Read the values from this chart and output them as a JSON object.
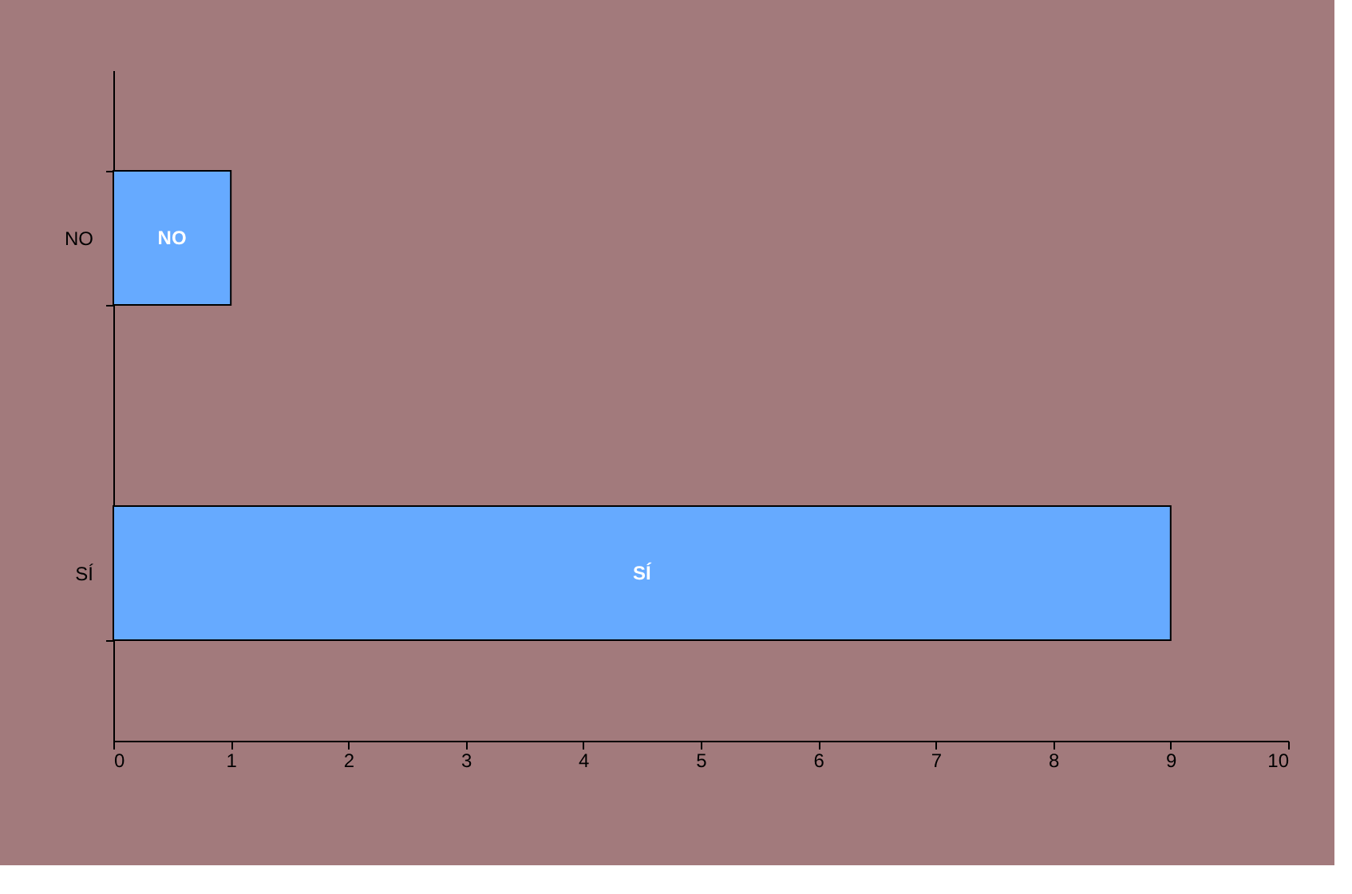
{
  "chart_data": {
    "type": "bar",
    "orientation": "horizontal",
    "categories": [
      "NO",
      "SÍ"
    ],
    "values": [
      1,
      9
    ],
    "value_labels": [
      "NO",
      "SÍ"
    ],
    "color": "#66aaff",
    "xlim": [
      0,
      10
    ],
    "xticks": [
      0,
      1,
      2,
      3,
      4,
      5,
      6,
      7,
      8,
      9,
      10
    ],
    "grid": false
  }
}
